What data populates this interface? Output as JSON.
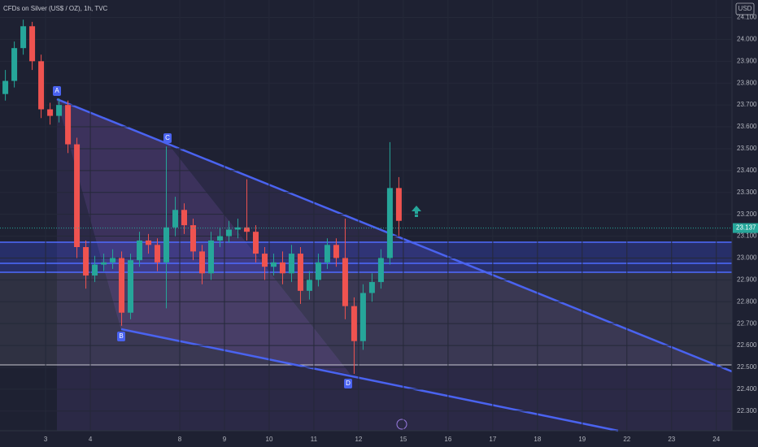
{
  "chart_data": {
    "type": "candlestick",
    "title": "CFDs on Silver (US$ / OZ), 1h, TVC",
    "currency": "USD",
    "last_price": 23.137,
    "annotations": [
      "A",
      "B",
      "C",
      "D"
    ],
    "up_color": "#26a69a",
    "down_color": "#ef5350",
    "x": [
      -0.9,
      -0.7,
      -0.5,
      -0.3,
      -0.1,
      0.1,
      0.3,
      0.5,
      0.7,
      0.9,
      1.1,
      1.3,
      1.5,
      1.7,
      1.9,
      2.1,
      2.3,
      2.5,
      2.7,
      2.9,
      3.1,
      3.3,
      3.5,
      3.7,
      3.9,
      4.1,
      4.3,
      4.5,
      4.7,
      4.9,
      5.1,
      5.3,
      5.5,
      5.7,
      5.9,
      6.1,
      6.3,
      6.5,
      6.7,
      6.9,
      7.1,
      7.3,
      7.5,
      7.7,
      7.9
    ],
    "open": [
      23.75,
      23.81,
      23.96,
      24.06,
      23.9,
      23.68,
      23.65,
      23.7,
      23.52,
      23.05,
      22.92,
      22.97,
      22.98,
      23.0,
      22.75,
      22.99,
      23.08,
      23.06,
      22.98,
      23.14,
      23.22,
      23.15,
      23.03,
      22.93,
      23.08,
      23.1,
      23.13,
      23.14,
      23.12,
      23.02,
      22.96,
      22.98,
      22.93,
      23.02,
      22.85,
      22.9,
      22.98,
      23.06,
      23.0,
      22.78,
      22.62,
      22.84,
      22.89,
      23.0,
      23.32
    ],
    "high": [
      23.86,
      23.99,
      24.09,
      24.08,
      23.93,
      23.71,
      23.73,
      23.72,
      23.55,
      23.08,
      23.01,
      23.02,
      23.04,
      23.03,
      23.02,
      23.12,
      23.11,
      23.09,
      23.51,
      23.28,
      23.25,
      23.18,
      23.06,
      23.12,
      23.14,
      23.17,
      23.18,
      23.36,
      23.15,
      23.05,
      23.02,
      23.03,
      23.06,
      23.05,
      22.94,
      23.02,
      23.09,
      23.09,
      23.18,
      22.82,
      22.88,
      22.93,
      23.04,
      23.53,
      23.37
    ],
    "low": [
      23.72,
      23.78,
      23.93,
      23.86,
      23.64,
      23.61,
      23.62,
      23.48,
      23.0,
      22.86,
      22.89,
      22.94,
      22.95,
      22.69,
      22.72,
      22.96,
      23.02,
      22.94,
      22.77,
      23.1,
      23.11,
      22.99,
      22.88,
      22.9,
      23.05,
      23.07,
      23.09,
      23.08,
      22.98,
      22.9,
      22.92,
      22.88,
      22.89,
      22.79,
      22.81,
      22.87,
      22.95,
      22.96,
      22.72,
      22.47,
      22.58,
      22.8,
      22.86,
      22.97,
      23.1
    ],
    "close": [
      23.81,
      23.96,
      24.06,
      23.9,
      23.68,
      23.65,
      23.7,
      23.52,
      23.05,
      22.92,
      22.97,
      22.98,
      23.0,
      22.75,
      22.99,
      23.08,
      23.06,
      22.98,
      23.14,
      23.22,
      23.15,
      23.03,
      22.93,
      23.08,
      23.1,
      23.13,
      23.14,
      23.12,
      23.02,
      22.96,
      22.98,
      22.93,
      23.02,
      22.85,
      22.9,
      22.98,
      23.06,
      23.0,
      22.78,
      22.62,
      22.84,
      22.89,
      23.0,
      23.32,
      23.17
    ],
    "xlim": [
      -1.02,
      15.35
    ],
    "ylim": [
      22.21,
      24.18
    ],
    "xticks": [
      {
        "value": 0,
        "label": "3"
      },
      {
        "value": 1,
        "label": "4"
      },
      {
        "value": 3,
        "label": "8"
      },
      {
        "value": 4,
        "label": "9"
      },
      {
        "value": 5,
        "label": "10"
      },
      {
        "value": 6,
        "label": "11"
      },
      {
        "value": 7,
        "label": "12"
      },
      {
        "value": 8,
        "label": "15"
      },
      {
        "value": 9,
        "label": "16"
      },
      {
        "value": 10,
        "label": "17"
      },
      {
        "value": 11,
        "label": "18"
      },
      {
        "value": 12,
        "label": "19"
      },
      {
        "value": 13,
        "label": "22"
      },
      {
        "value": 14,
        "label": "23"
      },
      {
        "value": 15,
        "label": "24"
      }
    ],
    "yticks": [
      {
        "value": 22.3,
        "label": "22.300"
      },
      {
        "value": 22.4,
        "label": "22.400"
      },
      {
        "value": 22.5,
        "label": "22.500"
      },
      {
        "value": 22.6,
        "label": "22.600"
      },
      {
        "value": 22.7,
        "label": "22.700"
      },
      {
        "value": 22.8,
        "label": "22.800"
      },
      {
        "value": 22.9,
        "label": "22.900"
      },
      {
        "value": 23.0,
        "label": "23.000"
      },
      {
        "value": 23.1,
        "label": "23.100"
      },
      {
        "value": 23.2,
        "label": "23.200"
      },
      {
        "value": 23.3,
        "label": "23.300"
      },
      {
        "value": 23.4,
        "label": "23.400"
      },
      {
        "value": 23.5,
        "label": "23.500"
      },
      {
        "value": 23.6,
        "label": "23.600"
      },
      {
        "value": 23.7,
        "label": "23.700"
      },
      {
        "value": 23.8,
        "label": "23.800"
      },
      {
        "value": 23.9,
        "label": "23.900"
      },
      {
        "value": 24.0,
        "label": "24.000"
      },
      {
        "value": 24.1,
        "label": "24.100"
      }
    ]
  }
}
